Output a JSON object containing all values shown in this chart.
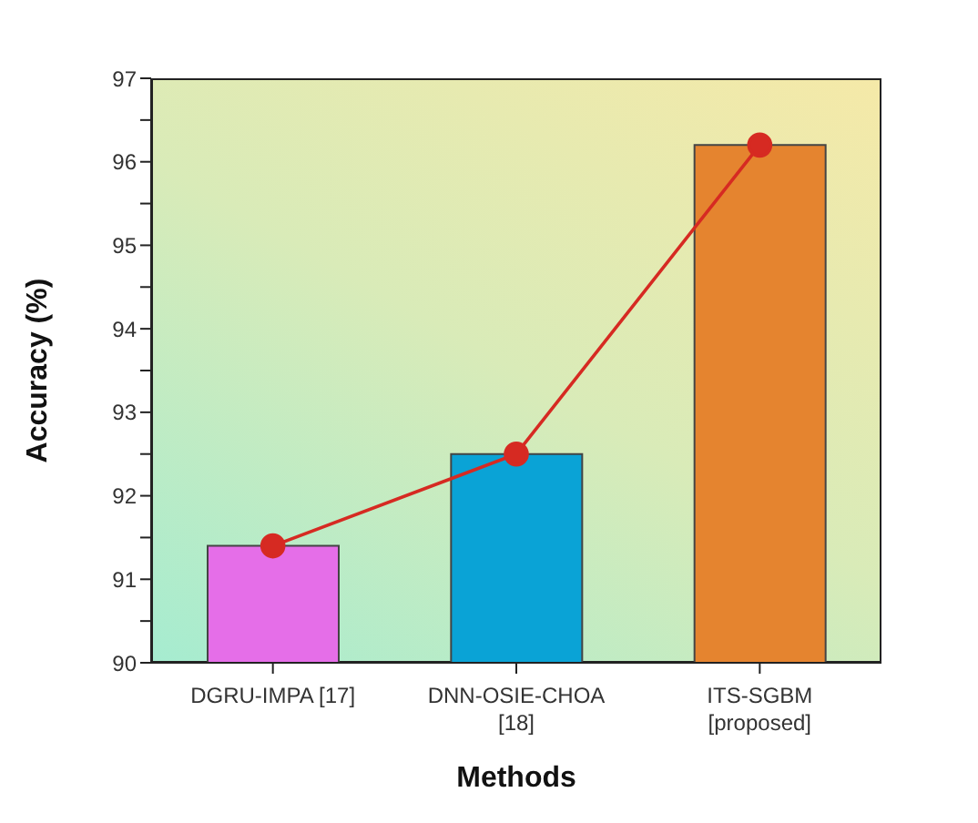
{
  "chart_data": {
    "type": "bar",
    "xlabel": "Methods",
    "ylabel": "Accuracy (%)",
    "categories": [
      "DGRU-IMPA [17]",
      "DNN-OSIE-CHOA\n[18]",
      "ITS-SGBM\n[proposed]"
    ],
    "series": [
      {
        "colors": [
          "#e56ee8",
          "#0aa3d6",
          "#e5842f"
        ],
        "values": [
          91.4,
          92.5,
          96.2
        ]
      },
      {
        "type": "line",
        "color": "#d62a22",
        "marker": "circle",
        "values": [
          91.4,
          92.5,
          96.2
        ]
      }
    ],
    "ylim": [
      90,
      97
    ],
    "yticks": [
      90,
      {
        "value": 90.5,
        "label": null
      },
      91,
      {
        "value": 91.5,
        "label": null
      },
      92,
      {
        "value": 92.5,
        "label": null
      },
      93,
      {
        "value": 93.5,
        "label": null
      },
      94,
      {
        "value": 94.5,
        "label": null
      },
      95,
      {
        "value": 95.5,
        "label": null
      },
      96,
      {
        "value": 96.5,
        "label": null
      },
      97
    ]
  }
}
